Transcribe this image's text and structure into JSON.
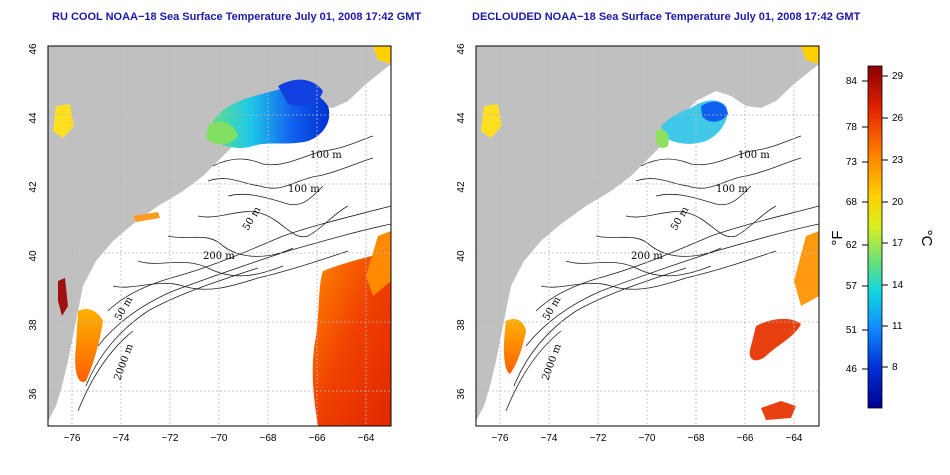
{
  "maps": [
    {
      "id": "left",
      "title": "RU COOL NOAA−18 Sea Surface Temperature July 01, 2008 17:42 GMT",
      "contour_labels": [
        "100 m",
        "100 m",
        "50 m",
        "200 m",
        "50 m",
        "2000 m"
      ]
    },
    {
      "id": "right",
      "title": "DECLOUDED NOAA−18 Sea Surface Temperature July 01, 2008 17:42 GMT",
      "contour_labels": [
        "100 m",
        "100 m",
        "50 m",
        "200 m",
        "50 m",
        "2000 m"
      ]
    }
  ],
  "axes": {
    "lon_ticks": [
      "−76",
      "−74",
      "−72",
      "−70",
      "−68",
      "−66",
      "−64"
    ],
    "lat_ticks": [
      "46",
      "44",
      "42",
      "40",
      "38",
      "36"
    ],
    "lon_range": [
      -77,
      -63
    ],
    "lat_range": [
      35,
      46
    ]
  },
  "colorbar": {
    "fahrenheit_ticks": [
      "84",
      "78",
      "73",
      "68",
      "62",
      "57",
      "51",
      "46"
    ],
    "celsius_ticks": [
      "29",
      "26",
      "23",
      "20",
      "17",
      "14",
      "11",
      "8"
    ],
    "unit_f": "°F",
    "unit_c": "°C",
    "colors": [
      "#8b0000",
      "#e02000",
      "#ff7a00",
      "#ffd000",
      "#d8ef20",
      "#60e080",
      "#10d8e0",
      "#1090ff",
      "#0030d8",
      "#000090"
    ]
  },
  "colors": {
    "land": "#c0c0c0",
    "ocean": "#ffffff",
    "title": "#1a1aa8"
  }
}
